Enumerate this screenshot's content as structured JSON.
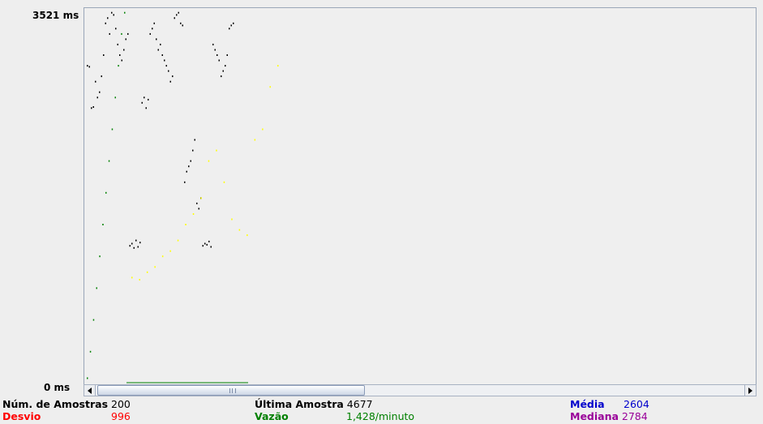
{
  "chart": {
    "y_max_label": "3521  ms",
    "y_min_label": "0  ms",
    "colors": {
      "samples": "#000000",
      "deviation": "#ffff00",
      "throughput": "#008000",
      "average": "#0000ff",
      "median": "#800080"
    }
  },
  "stats": {
    "samples": {
      "label": "Núm. de Amostras",
      "value": "200"
    },
    "last_sample": {
      "label": "Última Amostra",
      "value": "4677"
    },
    "average": {
      "label": "Média",
      "value": "2604"
    },
    "deviation": {
      "label": "Desvio",
      "value": "996"
    },
    "throughput": {
      "label": "Vazão",
      "value": "1,428/minuto"
    },
    "median": {
      "label": "Mediana",
      "value": "2784"
    }
  },
  "chart_data": {
    "type": "scatter",
    "ylim": [
      0,
      3521
    ],
    "y_unit": "ms",
    "series": [
      {
        "name": "",
        "color": "#000000",
        "values": [
          3000,
          2990,
          2600,
          2610,
          2850,
          2700,
          2750,
          2900,
          3100,
          3400,
          3450,
          3300,
          3500,
          3480,
          3350,
          3200,
          3100,
          3050,
          3150,
          3250,
          3300,
          1300,
          1320,
          1280,
          1350,
          1290,
          1330,
          2650,
          2700,
          2600,
          2680,
          3300,
          3350,
          3400,
          3250,
          3150,
          3200,
          3100,
          3050,
          3000,
          2950,
          2850,
          2900,
          3450,
          3480,
          3500,
          3400,
          3380,
          1900,
          2000,
          2050,
          2100,
          2200,
          2300,
          1700,
          1650,
          1750,
          1300,
          1320,
          1310,
          1340,
          1290,
          3200,
          3150,
          3100,
          3050,
          2900,
          2950,
          3000,
          3100,
          3350,
          3380,
          3400
        ]
      },
      {
        "name": "",
        "color": "#ffff00",
        "values": [
          1000,
          980,
          1050,
          1100,
          1200,
          1250,
          1350,
          1500,
          1600,
          1750,
          2100,
          2200,
          1900,
          1550,
          1450,
          1400,
          2300,
          2400,
          2800,
          3000
        ]
      },
      {
        "name": "",
        "color": "#008000",
        "values": [
          50,
          300,
          600,
          900,
          1200,
          1500,
          1800,
          2100,
          2400,
          2700,
          3000,
          3300,
          3500
        ]
      }
    ]
  }
}
